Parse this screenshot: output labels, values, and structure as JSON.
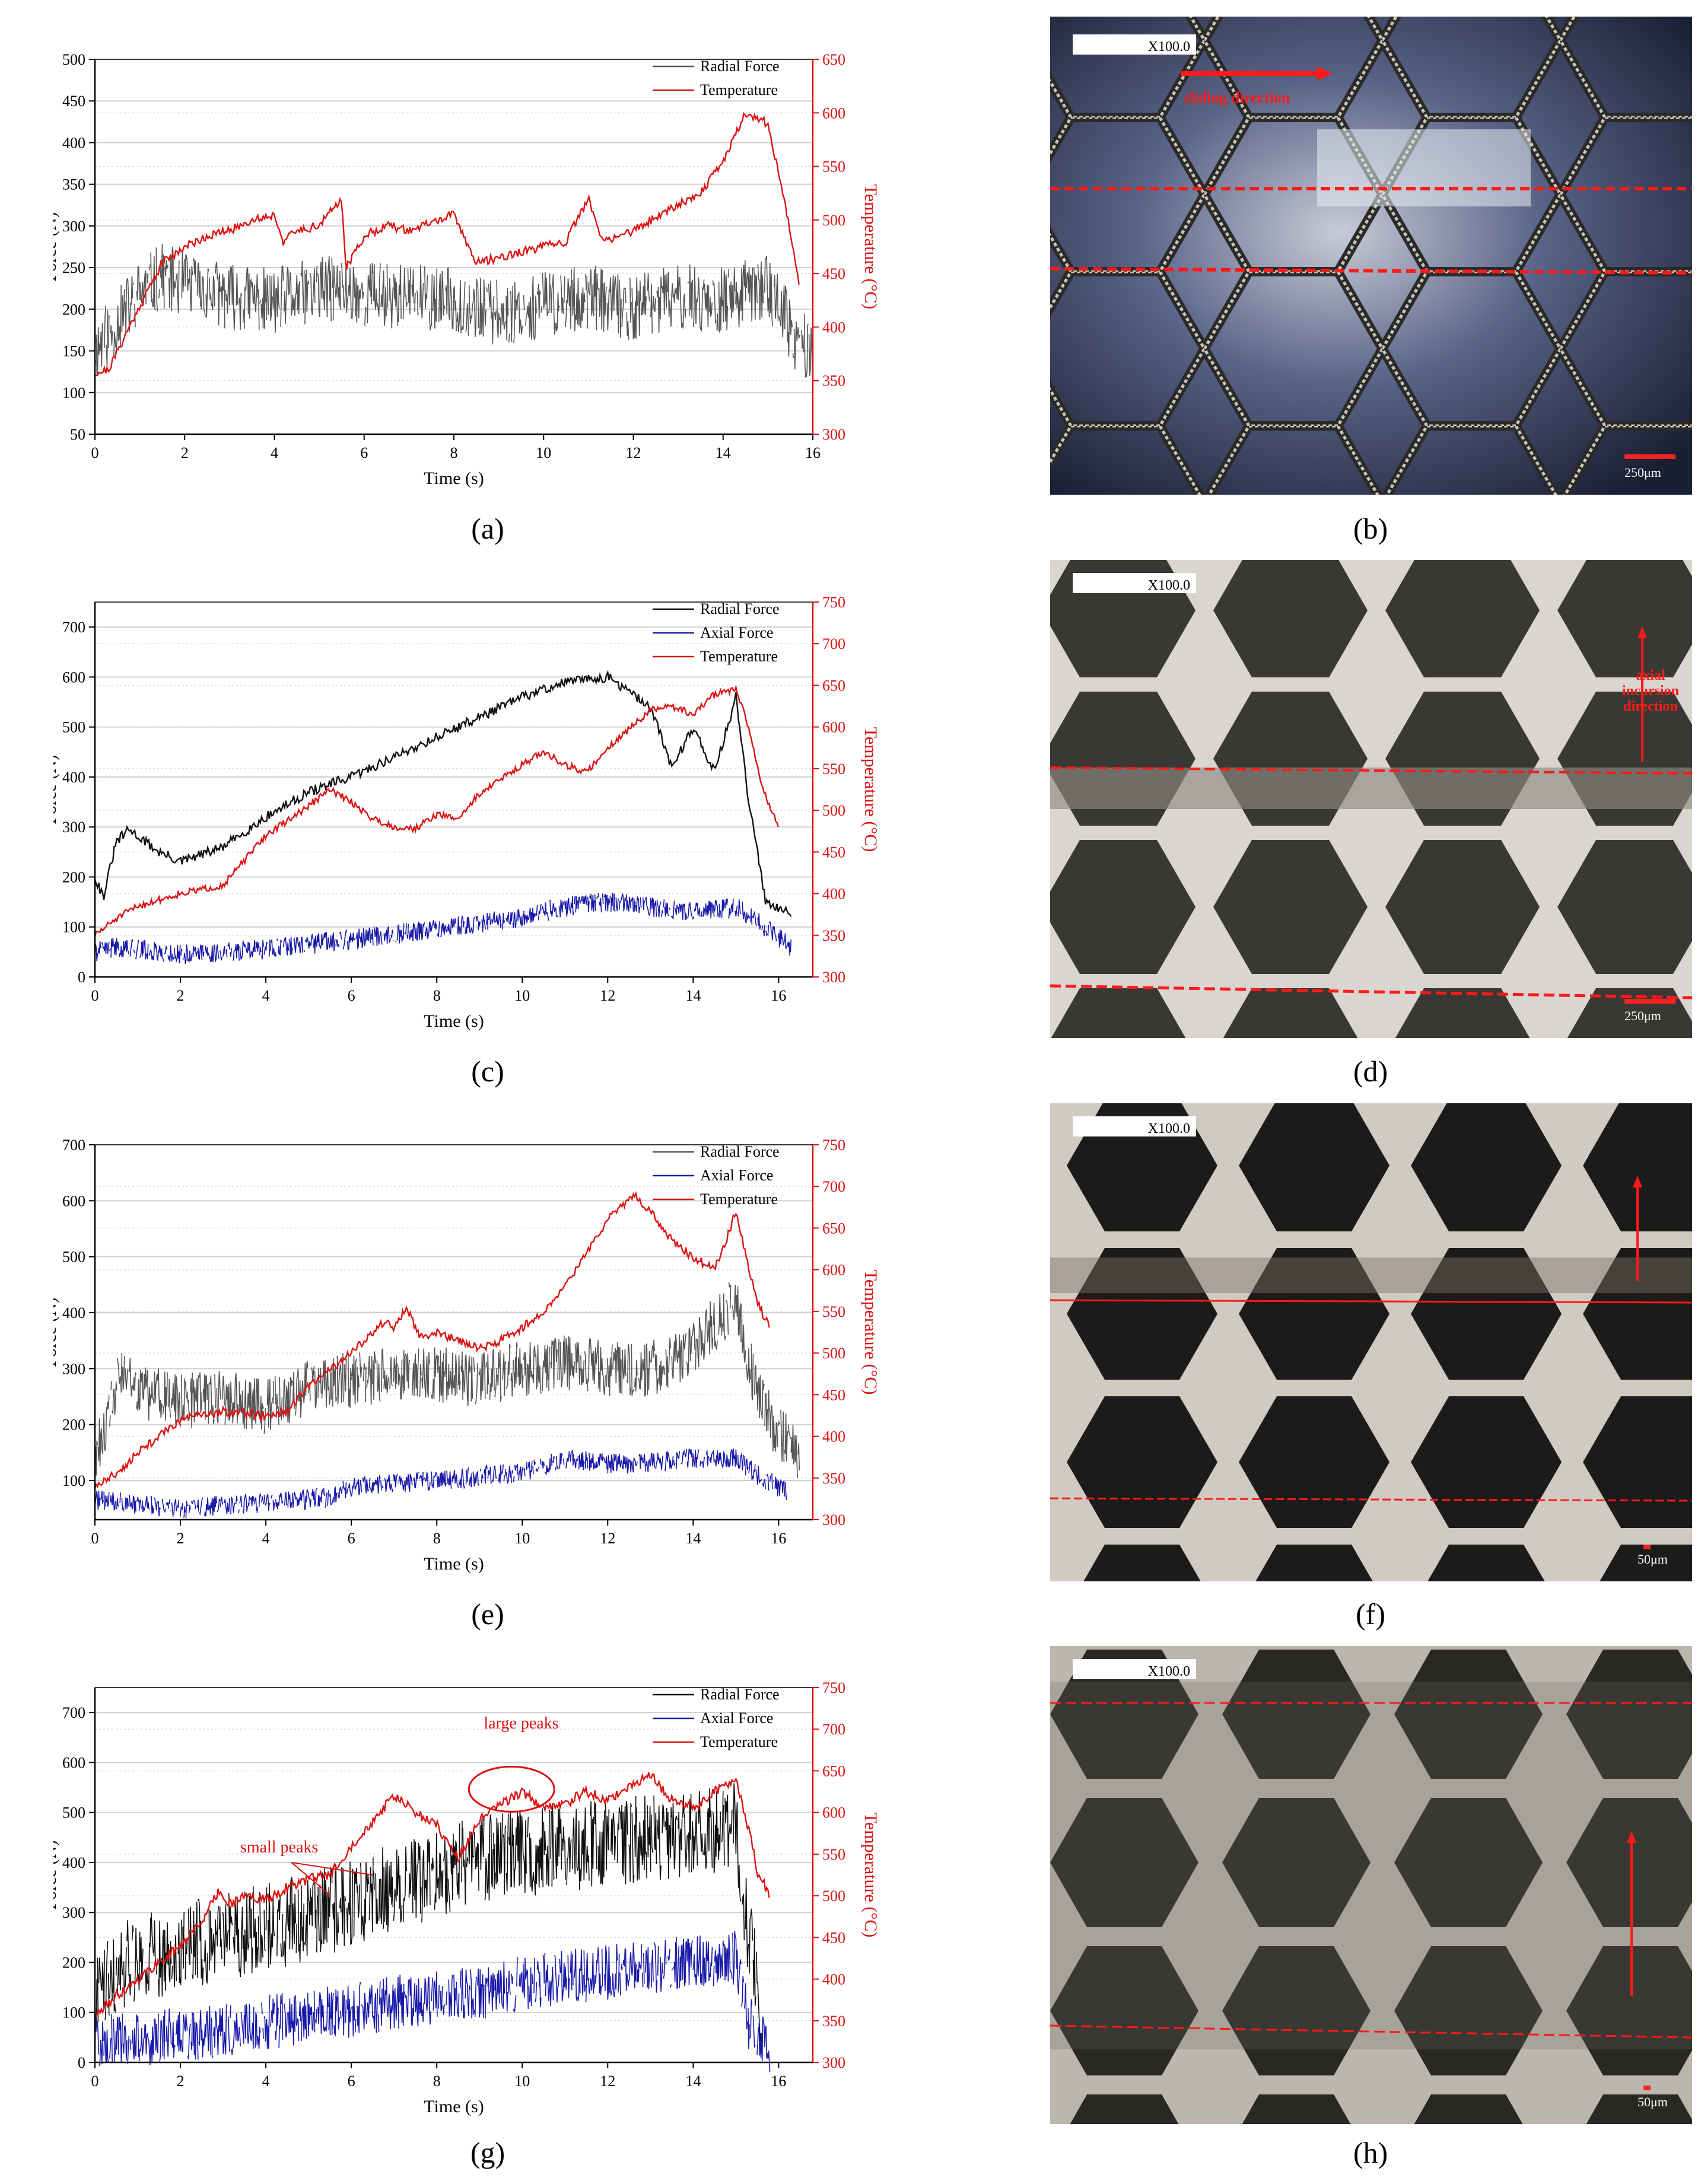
{
  "chart_data": [
    {
      "panel": "a",
      "type": "line",
      "xlabel": "Time (s)",
      "ylabel": "Force (N)",
      "y2label": "Temperature (°C)",
      "xlim": [
        0,
        16
      ],
      "ylim": [
        50,
        500
      ],
      "y2lim": [
        300,
        650
      ],
      "xticks": [
        0,
        2,
        4,
        6,
        8,
        10,
        12,
        14,
        16
      ],
      "yticks": [
        50,
        100,
        150,
        200,
        250,
        300,
        350,
        400,
        450,
        500
      ],
      "y2ticks": [
        300,
        350,
        400,
        450,
        500,
        550,
        600,
        650
      ],
      "series": [
        {
          "name": "Radial Force",
          "axis": "left",
          "color": "#555555",
          "style": "noisy",
          "x": [
            0,
            1,
            1.5,
            2,
            3,
            4,
            5,
            6,
            7,
            8,
            9,
            10,
            11,
            12,
            13,
            14,
            15,
            15.3,
            15.6,
            16
          ],
          "y": [
            150,
            220,
            240,
            230,
            215,
            210,
            225,
            220,
            215,
            210,
            195,
            205,
            215,
            200,
            215,
            210,
            230,
            200,
            160,
            150
          ],
          "amp": 40,
          "seed": 11
        },
        {
          "name": "Temperature",
          "axis": "right",
          "color": "#dd1111",
          "style": "smooth",
          "x": [
            0,
            0.3,
            1,
            1.5,
            2,
            2.5,
            3,
            3.5,
            4,
            4.2,
            4.5,
            5,
            5.5,
            5.6,
            6,
            6.5,
            7,
            8,
            8.5,
            9,
            10,
            10.5,
            11,
            11.3,
            12,
            13,
            13.5,
            14,
            14.5,
            15,
            15.5,
            15.7
          ],
          "y": [
            357,
            360,
            420,
            460,
            475,
            485,
            490,
            500,
            505,
            480,
            490,
            495,
            520,
            455,
            485,
            495,
            490,
            505,
            460,
            465,
            475,
            480,
            520,
            480,
            490,
            515,
            525,
            555,
            600,
            590,
            490,
            440
          ],
          "amp": 4,
          "seed": 21
        }
      ],
      "legend": {
        "position": "top-right",
        "entries": [
          "Radial Force",
          "Temperature"
        ]
      }
    },
    {
      "panel": "c",
      "type": "line",
      "xlabel": "Time (s)",
      "ylabel": "Force (N)",
      "y2label": "Temperature (°C)",
      "xlim": [
        0,
        16.8
      ],
      "ylim": [
        0,
        750
      ],
      "y2lim": [
        300,
        750
      ],
      "xticks": [
        0,
        2,
        4,
        6,
        8,
        10,
        12,
        14,
        16
      ],
      "yticks": [
        0,
        100,
        200,
        300,
        400,
        500,
        600,
        700
      ],
      "y2ticks": [
        300,
        350,
        400,
        450,
        500,
        550,
        600,
        650,
        700,
        750
      ],
      "series": [
        {
          "name": "Radial Force",
          "axis": "left",
          "color": "#111111",
          "style": "smooth",
          "x": [
            0,
            0.2,
            0.5,
            0.8,
            1.5,
            2,
            3,
            4,
            5,
            6,
            7,
            8,
            9,
            10,
            11,
            12,
            13,
            13.5,
            14,
            14.5,
            15,
            15.3,
            15.7,
            16.3
          ],
          "y": [
            200,
            160,
            270,
            295,
            250,
            230,
            260,
            320,
            370,
            400,
            440,
            480,
            520,
            560,
            590,
            600,
            540,
            420,
            500,
            410,
            560,
            350,
            150,
            130
          ],
          "amp": 10,
          "seed": 31
        },
        {
          "name": "Axial Force",
          "axis": "left",
          "color": "#1a1aaa",
          "style": "noisy",
          "x": [
            0,
            0.5,
            2,
            4,
            6,
            8,
            10,
            11,
            12,
            13,
            14,
            15,
            15.5,
            16.3
          ],
          "y": [
            50,
            60,
            45,
            55,
            75,
            95,
            120,
            140,
            150,
            140,
            130,
            140,
            110,
            60
          ],
          "amp": 20,
          "seed": 41
        },
        {
          "name": "Temperature",
          "axis": "right",
          "color": "#dd1111",
          "style": "smooth",
          "x": [
            0,
            0.5,
            1,
            2,
            3,
            3.5,
            4,
            5,
            5.5,
            6,
            6.5,
            7,
            7.5,
            8,
            8.5,
            9,
            10,
            10.5,
            11,
            11.5,
            12,
            13,
            13.5,
            14,
            14.5,
            15,
            15.3,
            15.6,
            16
          ],
          "y": [
            350,
            370,
            385,
            400,
            410,
            440,
            470,
            505,
            525,
            510,
            490,
            480,
            478,
            495,
            490,
            520,
            555,
            570,
            555,
            545,
            575,
            620,
            625,
            615,
            640,
            645,
            600,
            530,
            480
          ],
          "amp": 4,
          "seed": 51
        }
      ],
      "legend": {
        "position": "top-right",
        "entries": [
          "Radial Force",
          "Axial Force",
          "Temperature"
        ]
      }
    },
    {
      "panel": "e",
      "type": "line",
      "xlabel": "Time (s)",
      "ylabel": "Force (N)",
      "y2label": "Temperature (°C)",
      "xlim": [
        0,
        16.8
      ],
      "ylim": [
        30,
        700
      ],
      "y2lim": [
        300,
        750
      ],
      "xticks": [
        0,
        2,
        4,
        6,
        8,
        10,
        12,
        14,
        16
      ],
      "yticks": [
        100,
        200,
        300,
        400,
        500,
        600,
        700
      ],
      "y2ticks": [
        300,
        350,
        400,
        450,
        500,
        550,
        600,
        650,
        700,
        750
      ],
      "series": [
        {
          "name": "Radial Force",
          "axis": "left",
          "color": "#555555",
          "style": "noisy",
          "x": [
            0,
            0.3,
            0.6,
            1,
            2,
            3,
            4,
            5,
            6,
            7,
            8,
            9,
            10,
            11,
            12,
            13,
            14,
            14.5,
            15,
            15.5,
            16,
            16.5
          ],
          "y": [
            150,
            200,
            300,
            260,
            240,
            250,
            230,
            270,
            280,
            290,
            290,
            280,
            300,
            310,
            300,
            300,
            330,
            380,
            420,
            250,
            180,
            150
          ],
          "amp": 50,
          "seed": 61
        },
        {
          "name": "Axial Force",
          "axis": "left",
          "color": "#1a1aaa",
          "style": "noisy",
          "x": [
            0,
            0.5,
            2,
            4,
            5.5,
            6,
            8,
            10,
            11,
            12,
            13,
            14,
            15,
            15.5,
            16.2
          ],
          "y": [
            65,
            62,
            50,
            60,
            70,
            90,
            100,
            115,
            140,
            130,
            130,
            140,
            140,
            110,
            80
          ],
          "amp": 18,
          "seed": 71
        },
        {
          "name": "Temperature",
          "axis": "right",
          "color": "#dd1111",
          "style": "smooth",
          "x": [
            0,
            0.5,
            1,
            2,
            3,
            4,
            4.5,
            5,
            6,
            6.8,
            7,
            7.3,
            7.6,
            8,
            9,
            9.3,
            10,
            10.5,
            11,
            11.5,
            12,
            12.6,
            13,
            13.5,
            14,
            14.5,
            14.8,
            15,
            15.5,
            15.8
          ],
          "y": [
            340,
            355,
            380,
            420,
            430,
            425,
            430,
            460,
            500,
            540,
            530,
            555,
            520,
            525,
            505,
            510,
            530,
            550,
            580,
            620,
            660,
            690,
            670,
            635,
            615,
            600,
            640,
            670,
            560,
            530
          ],
          "amp": 5,
          "seed": 81
        }
      ],
      "legend": {
        "position": "top-right",
        "entries": [
          "Radial Force",
          "Axial Force",
          "Temperature"
        ]
      }
    },
    {
      "panel": "g",
      "type": "line",
      "xlabel": "Time (s)",
      "ylabel": "Force (N)",
      "y2label": "Temperature (°C)",
      "xlim": [
        0,
        16.8
      ],
      "ylim": [
        0,
        750
      ],
      "y2lim": [
        300,
        750
      ],
      "xticks": [
        0,
        2,
        4,
        6,
        8,
        10,
        12,
        14,
        16
      ],
      "yticks": [
        0,
        100,
        200,
        300,
        400,
        500,
        600,
        700
      ],
      "y2ticks": [
        300,
        350,
        400,
        450,
        500,
        550,
        600,
        650,
        700,
        750
      ],
      "series": [
        {
          "name": "Radial Force",
          "axis": "left",
          "color": "#111111",
          "style": "noisy",
          "x": [
            0,
            0.5,
            1,
            2,
            3,
            4,
            5,
            6,
            7,
            8,
            9,
            10,
            11,
            12,
            13,
            14,
            15,
            15.3,
            15.6
          ],
          "y": [
            150,
            190,
            210,
            230,
            250,
            270,
            290,
            320,
            350,
            380,
            410,
            420,
            430,
            440,
            450,
            460,
            470,
            250,
            110
          ],
          "amp": 90,
          "seed": 91
        },
        {
          "name": "Axial Force",
          "axis": "left",
          "color": "#1a1aaa",
          "style": "noisy",
          "x": [
            0,
            1,
            2,
            3,
            4,
            5,
            6,
            7,
            8,
            9,
            10,
            11,
            12,
            13,
            14,
            15,
            15.3,
            15.8
          ],
          "y": [
            40,
            45,
            55,
            65,
            80,
            90,
            105,
            120,
            130,
            140,
            160,
            170,
            180,
            190,
            200,
            210,
            80,
            30
          ],
          "amp": 55,
          "seed": 101
        },
        {
          "name": "Temperature",
          "axis": "right",
          "color": "#dd1111",
          "style": "smooth",
          "x": [
            0,
            0.5,
            1,
            1.5,
            2,
            2.5,
            2.9,
            3.2,
            3.5,
            4,
            4.5,
            5,
            5.5,
            6,
            6.5,
            7,
            7.5,
            8,
            8.5,
            9,
            9.5,
            10,
            10.5,
            11,
            11.5,
            12,
            12.5,
            13,
            13.5,
            14,
            14.5,
            15,
            15.3,
            15.5,
            15.8
          ],
          "y": [
            355,
            380,
            400,
            420,
            440,
            470,
            505,
            490,
            500,
            495,
            510,
            520,
            525,
            560,
            590,
            620,
            600,
            585,
            545,
            590,
            610,
            625,
            605,
            610,
            625,
            615,
            630,
            645,
            615,
            605,
            625,
            640,
            580,
            530,
            500
          ],
          "amp": 6,
          "seed": 111
        }
      ],
      "annotations": [
        {
          "text": "small peaks",
          "color": "#dd1111"
        },
        {
          "text": "large peaks",
          "color": "#dd1111"
        }
      ],
      "legend": {
        "position": "top-right",
        "entries": [
          "Radial Force",
          "Axial Force",
          "Temperature"
        ]
      }
    }
  ],
  "panels": {
    "a": "(a)",
    "b": "(b)",
    "c": "(c)",
    "d": "(d)",
    "e": "(e)",
    "f": "(f)",
    "g": "(g)",
    "h": "(h)"
  },
  "micrographs": [
    {
      "panel": "b",
      "magnification": "X100.0",
      "scale": "250μm",
      "note1": "sliding direction",
      "note2": ""
    },
    {
      "panel": "d",
      "magnification": "X100.0",
      "scale": "250μm",
      "note1": "axial",
      "note2": "incursion",
      "note3": "direction"
    },
    {
      "panel": "f",
      "magnification": "X100.0",
      "scale": "50μm"
    },
    {
      "panel": "h",
      "magnification": "X100.0",
      "scale": "50μm"
    }
  ],
  "colors": {
    "radial": "#111111",
    "axial": "#1a1aaa",
    "temperature": "#dd1111"
  }
}
